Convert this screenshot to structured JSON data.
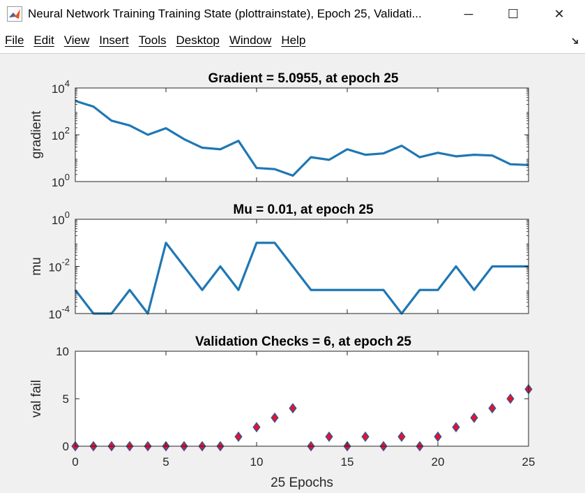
{
  "window": {
    "title": "Neural Network Training Training State (plottrainstate), Epoch 25, Validati...",
    "minimize_glyph": "─",
    "maximize_glyph": "☐",
    "close_glyph": "✕"
  },
  "menu": {
    "items": [
      "File",
      "Edit",
      "View",
      "Insert",
      "Tools",
      "Desktop",
      "Window",
      "Help"
    ]
  },
  "icons": {
    "app": "matlab-icon",
    "dock": "dock-arrow-icon"
  },
  "colors": {
    "line": "#1f77b4",
    "marker_fill": "#e8112d",
    "marker_edge": "#1f5fa0"
  },
  "chart_data": [
    {
      "type": "line",
      "title": "Gradient = 5.0955, at epoch 25",
      "xlabel": "",
      "ylabel": "gradient",
      "yscale": "log",
      "ylim": [
        1,
        10000
      ],
      "yticks": [
        1,
        100,
        10000
      ],
      "ytick_labels": [
        [
          "10",
          "0"
        ],
        [
          "10",
          "2"
        ],
        [
          "10",
          "4"
        ]
      ],
      "xlim": [
        0,
        25
      ],
      "x": [
        0,
        1,
        2,
        3,
        4,
        5,
        6,
        7,
        8,
        9,
        10,
        11,
        12,
        13,
        14,
        15,
        16,
        17,
        18,
        19,
        20,
        21,
        22,
        23,
        24,
        25
      ],
      "y": [
        2800,
        1600,
        400,
        250,
        100,
        190,
        65,
        28,
        24,
        55,
        3.8,
        3.4,
        1.8,
        11,
        8.5,
        24,
        14,
        16,
        34,
        11,
        17,
        12,
        14,
        13,
        5.5,
        5.0955
      ]
    },
    {
      "type": "line",
      "title": "Mu = 0.01, at epoch 25",
      "xlabel": "",
      "ylabel": "mu",
      "yscale": "log",
      "ylim": [
        0.0001,
        1
      ],
      "yticks": [
        0.0001,
        0.01,
        1
      ],
      "ytick_labels": [
        [
          "10",
          "-4"
        ],
        [
          "10",
          "-2"
        ],
        [
          "10",
          "0"
        ]
      ],
      "xlim": [
        0,
        25
      ],
      "x": [
        0,
        1,
        2,
        3,
        4,
        5,
        6,
        7,
        8,
        9,
        10,
        11,
        12,
        13,
        14,
        15,
        16,
        17,
        18,
        19,
        20,
        21,
        22,
        23,
        24,
        25
      ],
      "y": [
        0.001,
        0.0001,
        0.0001,
        0.001,
        0.0001,
        0.1,
        0.01,
        0.001,
        0.01,
        0.001,
        0.1,
        0.1,
        0.01,
        0.001,
        0.001,
        0.001,
        0.001,
        0.001,
        0.0001,
        0.001,
        0.001,
        0.01,
        0.001,
        0.01,
        0.01,
        0.01
      ]
    },
    {
      "type": "scatter",
      "title": "Validation Checks = 6, at epoch 25",
      "xlabel": "25 Epochs",
      "ylabel": "val fail",
      "yscale": "linear",
      "ylim": [
        0,
        10
      ],
      "yticks": [
        0,
        5,
        10
      ],
      "ytick_labels": [
        "0",
        "5",
        "10"
      ],
      "xlim": [
        0,
        25
      ],
      "xticks": [
        0,
        5,
        10,
        15,
        20,
        25
      ],
      "xtick_labels": [
        "0",
        "5",
        "10",
        "15",
        "20",
        "25"
      ],
      "x": [
        0,
        1,
        2,
        3,
        4,
        5,
        6,
        7,
        8,
        9,
        10,
        11,
        12,
        13,
        14,
        15,
        16,
        17,
        18,
        19,
        20,
        21,
        22,
        23,
        24,
        25
      ],
      "y": [
        0,
        0,
        0,
        0,
        0,
        0,
        0,
        0,
        0,
        1,
        2,
        3,
        4,
        0,
        1,
        0,
        1,
        0,
        1,
        0,
        1,
        2,
        3,
        4,
        5,
        6
      ]
    }
  ]
}
